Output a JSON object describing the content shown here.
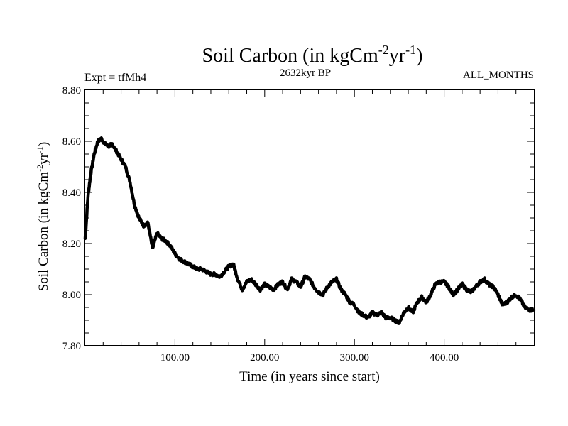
{
  "chart_data": {
    "type": "line",
    "title": "Soil Carbon (in kgCm",
    "title_sup1": "-2",
    "title_mid": "yr",
    "title_sup2": "-1",
    "title_end": ")",
    "subtitle_left": "Expt = tfMh4",
    "subtitle_center": "2632kyr BP",
    "subtitle_right": "ALL_MONTHS",
    "xlabel": "Time (in years since start)",
    "ylabel": "Soil Carbon (in kgCm",
    "ylabel_sup1": "-2",
    "ylabel_mid": "yr",
    "ylabel_sup2": "-1",
    "ylabel_end": ")",
    "xlim": [
      0,
      500
    ],
    "ylim": [
      7.8,
      8.8
    ],
    "xticks_major": [
      100,
      200,
      300,
      400
    ],
    "xtick_labels": [
      "100.00",
      "200.00",
      "300.00",
      "400.00"
    ],
    "xticks_minor_step": 20,
    "yticks_major": [
      7.8,
      8.0,
      8.2,
      8.4,
      8.6,
      8.8
    ],
    "ytick_labels": [
      "7.80",
      "8.00",
      "8.20",
      "8.40",
      "8.60",
      "8.80"
    ],
    "yticks_minor_step": 0.05,
    "series": [
      {
        "name": "Soil Carbon",
        "x": [
          0,
          3,
          6,
          10,
          14,
          18,
          22,
          26,
          30,
          35,
          40,
          45,
          50,
          55,
          60,
          65,
          70,
          75,
          80,
          85,
          90,
          95,
          100,
          105,
          110,
          115,
          120,
          125,
          130,
          135,
          140,
          145,
          150,
          155,
          160,
          165,
          170,
          175,
          180,
          185,
          190,
          195,
          200,
          205,
          210,
          215,
          220,
          225,
          230,
          235,
          240,
          245,
          250,
          255,
          260,
          265,
          270,
          275,
          280,
          285,
          290,
          295,
          300,
          305,
          310,
          315,
          320,
          325,
          330,
          335,
          340,
          345,
          350,
          355,
          360,
          365,
          370,
          375,
          380,
          385,
          390,
          395,
          400,
          405,
          410,
          415,
          420,
          425,
          430,
          435,
          440,
          445,
          450,
          455,
          460,
          465,
          470,
          475,
          480,
          485,
          490,
          495,
          500
        ],
        "values": [
          8.22,
          8.38,
          8.47,
          8.55,
          8.6,
          8.61,
          8.59,
          8.58,
          8.59,
          8.56,
          8.53,
          8.5,
          8.44,
          8.35,
          8.3,
          8.27,
          8.28,
          8.18,
          8.24,
          8.22,
          8.21,
          8.19,
          8.16,
          8.14,
          8.13,
          8.12,
          8.11,
          8.1,
          8.1,
          8.09,
          8.08,
          8.08,
          8.07,
          8.09,
          8.11,
          8.12,
          8.06,
          8.02,
          8.05,
          8.06,
          8.04,
          8.02,
          8.04,
          8.03,
          8.02,
          8.04,
          8.05,
          8.02,
          8.06,
          8.05,
          8.03,
          8.07,
          8.06,
          8.03,
          8.01,
          8.0,
          8.03,
          8.05,
          8.06,
          8.02,
          8.0,
          7.97,
          7.96,
          7.93,
          7.92,
          7.91,
          7.93,
          7.92,
          7.93,
          7.91,
          7.91,
          7.9,
          7.89,
          7.93,
          7.95,
          7.93,
          7.97,
          7.99,
          7.97,
          8.0,
          8.04,
          8.05,
          8.05,
          8.03,
          8.0,
          8.02,
          8.04,
          8.02,
          8.01,
          8.03,
          8.05,
          8.06,
          8.04,
          8.03,
          8.0,
          7.96,
          7.97,
          7.99,
          8.0,
          7.98,
          7.95,
          7.94,
          7.94
        ]
      }
    ]
  }
}
